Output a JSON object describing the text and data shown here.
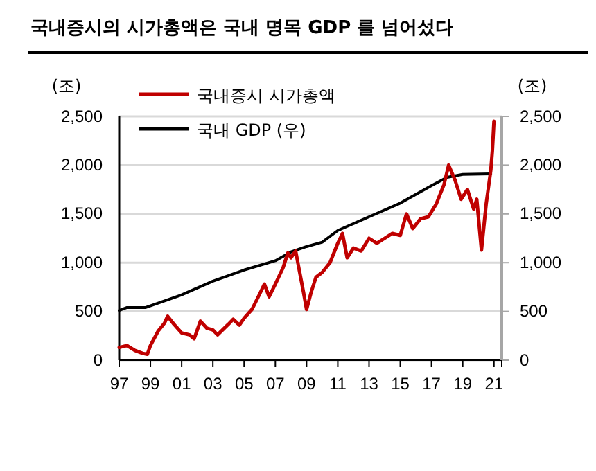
{
  "chart_data": {
    "type": "line",
    "title": "국내증시의 시가총액은 국내 명목 GDP 를 넘어섰다",
    "ylabel": "(조)",
    "y2label": "(조)",
    "xlim": [
      1997,
      2021.5
    ],
    "xticks": [
      {
        "value": 1997,
        "label": "97"
      },
      {
        "value": 1999,
        "label": "99"
      },
      {
        "value": 2001,
        "label": "01"
      },
      {
        "value": 2003,
        "label": "03"
      },
      {
        "value": 2005,
        "label": "05"
      },
      {
        "value": 2007,
        "label": "07"
      },
      {
        "value": 2009,
        "label": "09"
      },
      {
        "value": 2011,
        "label": "11"
      },
      {
        "value": 2013,
        "label": "13"
      },
      {
        "value": 2015,
        "label": "15"
      },
      {
        "value": 2017,
        "label": "17"
      },
      {
        "value": 2019,
        "label": "19"
      },
      {
        "value": 2021,
        "label": "21"
      }
    ],
    "ylim": [
      0,
      2500
    ],
    "yticks": [
      {
        "value": 0,
        "label": "0"
      },
      {
        "value": 500,
        "label": "500"
      },
      {
        "value": 1000,
        "label": "1,000"
      },
      {
        "value": 1500,
        "label": "1,500"
      },
      {
        "value": 2000,
        "label": "2,000"
      },
      {
        "value": 2500,
        "label": "2,500"
      }
    ],
    "y2lim": [
      0,
      2500
    ],
    "y2ticks": [
      {
        "value": 0,
        "label": "0"
      },
      {
        "value": 500,
        "label": "500"
      },
      {
        "value": 1000,
        "label": "1,000"
      },
      {
        "value": 1500,
        "label": "1,500"
      },
      {
        "value": 2000,
        "label": "2,000"
      },
      {
        "value": 2500,
        "label": "2,500"
      }
    ],
    "grid": "y",
    "legend": "top left",
    "series": [
      {
        "name": "국내증시 시가총액",
        "color": "#c00000",
        "x": [
          1997,
          1997.5,
          1998,
          1998.5,
          1998.8,
          1999,
          1999.5,
          1999.9,
          2000.1,
          2000.5,
          2001,
          2001.5,
          2001.8,
          2002.2,
          2002.6,
          2003,
          2003.3,
          2004,
          2004.3,
          2004.7,
          2005,
          2005.5,
          2006,
          2006.3,
          2006.6,
          2007,
          2007.5,
          2007.8,
          2008,
          2008.3,
          2008.5,
          2008.8,
          2009,
          2009.3,
          2009.6,
          2010,
          2010.5,
          2011,
          2011.3,
          2011.6,
          2012,
          2012.5,
          2013,
          2013.5,
          2014,
          2014.5,
          2015,
          2015.4,
          2015.8,
          2016.3,
          2016.8,
          2017.3,
          2017.8,
          2018.1,
          2018.5,
          2018.9,
          2019.3,
          2019.7,
          2019.9,
          2020.2,
          2020.5,
          2020.8,
          2020.9,
          2021
        ],
        "values": [
          130,
          150,
          100,
          70,
          60,
          150,
          300,
          380,
          450,
          370,
          280,
          260,
          220,
          400,
          330,
          310,
          260,
          370,
          420,
          360,
          430,
          520,
          680,
          780,
          650,
          780,
          950,
          1100,
          1050,
          1120,
          950,
          700,
          520,
          700,
          850,
          900,
          1000,
          1200,
          1300,
          1050,
          1150,
          1120,
          1250,
          1200,
          1250,
          1300,
          1280,
          1500,
          1350,
          1450,
          1470,
          1600,
          1800,
          2000,
          1850,
          1650,
          1750,
          1550,
          1650,
          1130,
          1600,
          1950,
          2150,
          2450
        ]
      },
      {
        "name": "국내 GDP (우)",
        "color": "#000000",
        "axis": "y2",
        "x": [
          1997,
          1997.5,
          1998.7,
          2001,
          2003,
          2005,
          2007,
          2008,
          2009,
          2010,
          2011,
          2013,
          2015,
          2017,
          2018,
          2019,
          2020.8
        ],
        "values": [
          510,
          540,
          540,
          670,
          810,
          925,
          1020,
          1110,
          1165,
          1210,
          1330,
          1470,
          1610,
          1790,
          1875,
          1905,
          1910
        ]
      }
    ]
  }
}
